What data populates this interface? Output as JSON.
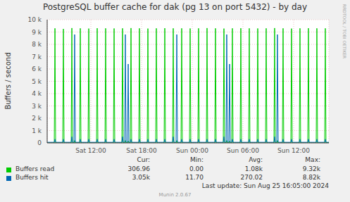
{
  "chart_data": {
    "type": "line",
    "title": "PostgreSQL buffer cache for dak (pg 13 on port 5432) - by day",
    "y_label": "Buffers / second",
    "side_text": "RRDTOOL / TOBI OETIKER",
    "footer": "Last update: Sun Aug 25 16:05:00 2024",
    "credit": "Munin 2.0.67",
    "stat_headers": [
      "Cur:",
      "Min:",
      "Avg:",
      "Max:"
    ],
    "grid": true,
    "xlim": [
      6.83,
      40.17
    ],
    "xticks": [
      {
        "value": 12,
        "label": "Sat 12:00"
      },
      {
        "value": 18,
        "label": "Sat 18:00"
      },
      {
        "value": 24,
        "label": "Sun 00:00"
      },
      {
        "value": 30,
        "label": "Sun 06:00"
      },
      {
        "value": 36,
        "label": "Sun 12:00"
      }
    ],
    "ylim": [
      0,
      10000
    ],
    "yticks": [
      0,
      {
        "value": 1000,
        "label": "1 k"
      },
      {
        "value": 2000,
        "label": "2 k"
      },
      {
        "value": 3000,
        "label": "3 k"
      },
      {
        "value": 4000,
        "label": "4 k"
      },
      {
        "value": 5000,
        "label": "5 k"
      },
      {
        "value": 6000,
        "label": "6 k"
      },
      {
        "value": 7000,
        "label": "7 k"
      },
      {
        "value": 8000,
        "label": "8 k"
      },
      {
        "value": 9000,
        "label": "9 k"
      },
      {
        "value": 10000,
        "label": "10 k"
      }
    ],
    "x": [
      6.83,
      7.67,
      7.75,
      7.83,
      8.67,
      8.75,
      8.83,
      9.67,
      9.75,
      9.83,
      10.0,
      10.08,
      10.17,
      10.67,
      10.75,
      10.83,
      11.67,
      11.75,
      11.83,
      12.67,
      12.75,
      12.83,
      13.67,
      13.75,
      13.83,
      14.67,
      14.75,
      14.83,
      15.67,
      15.75,
      15.83,
      16.0,
      16.08,
      16.17,
      16.33,
      16.42,
      16.5,
      16.67,
      16.75,
      16.83,
      17.67,
      17.75,
      17.83,
      18.67,
      18.75,
      18.83,
      19.67,
      19.75,
      19.83,
      20.67,
      20.75,
      20.83,
      21.67,
      21.75,
      21.83,
      22.08,
      22.17,
      22.25,
      22.67,
      22.75,
      22.83,
      23.67,
      23.75,
      23.83,
      24.67,
      24.75,
      24.83,
      25.67,
      25.75,
      25.83,
      26.67,
      26.75,
      26.83,
      27.67,
      27.75,
      27.83,
      28.0,
      28.08,
      28.17,
      28.33,
      28.42,
      28.5,
      28.67,
      28.75,
      28.83,
      29.67,
      29.75,
      29.83,
      30.67,
      30.75,
      30.83,
      31.67,
      31.75,
      31.83,
      32.67,
      32.75,
      32.83,
      33.67,
      33.75,
      33.83,
      34.0,
      34.08,
      34.17,
      34.67,
      34.75,
      34.83,
      35.67,
      35.75,
      35.83,
      36.67,
      36.75,
      36.83,
      37.67,
      37.75,
      37.83,
      38.67,
      38.75,
      38.83,
      39.67,
      39.75,
      39.83,
      40.17
    ],
    "series": [
      {
        "name": "Buffers read",
        "color": "#00cc00",
        "stats": [
          "306.96",
          "0.00",
          "1.08k",
          "9.32k"
        ],
        "values": [
          0,
          0,
          9300,
          0,
          0,
          9250,
          0,
          0,
          9320,
          0,
          0,
          200,
          0,
          0,
          9300,
          0,
          0,
          9280,
          0,
          0,
          9310,
          0,
          0,
          9300,
          0,
          0,
          9290,
          0,
          0,
          9300,
          0,
          0,
          200,
          0,
          0,
          150,
          0,
          0,
          9320,
          0,
          0,
          9300,
          0,
          0,
          9280,
          0,
          0,
          9300,
          0,
          0,
          9310,
          0,
          0,
          9300,
          0,
          0,
          200,
          0,
          0,
          9300,
          0,
          0,
          9290,
          0,
          0,
          9300,
          0,
          0,
          9320,
          0,
          0,
          9300,
          0,
          0,
          9280,
          0,
          0,
          200,
          0,
          0,
          150,
          0,
          0,
          9300,
          0,
          0,
          9310,
          0,
          0,
          9300,
          0,
          0,
          9290,
          0,
          0,
          9300,
          0,
          0,
          9320,
          0,
          0,
          200,
          0,
          0,
          9300,
          0,
          0,
          9280,
          0,
          0,
          9300,
          0,
          0,
          9310,
          0,
          0,
          9300,
          0,
          0,
          9300,
          0,
          50
        ]
      },
      {
        "name": "Buffers hit",
        "color": "#0066b3",
        "stats": [
          "3.05k",
          "11.70",
          "270.02",
          "8.82k"
        ],
        "values": [
          50,
          50,
          300,
          50,
          50,
          300,
          50,
          50,
          500,
          50,
          50,
          8800,
          50,
          50,
          300,
          50,
          50,
          300,
          50,
          50,
          300,
          50,
          50,
          300,
          50,
          50,
          300,
          50,
          50,
          500,
          50,
          50,
          8800,
          50,
          50,
          6400,
          50,
          50,
          300,
          50,
          50,
          300,
          50,
          50,
          300,
          50,
          50,
          300,
          50,
          50,
          300,
          50,
          50,
          500,
          50,
          50,
          8800,
          50,
          50,
          300,
          50,
          50,
          300,
          50,
          50,
          300,
          50,
          50,
          300,
          50,
          50,
          300,
          50,
          50,
          500,
          50,
          50,
          8800,
          50,
          50,
          6400,
          50,
          50,
          300,
          50,
          50,
          300,
          50,
          50,
          300,
          50,
          50,
          300,
          50,
          50,
          300,
          50,
          50,
          500,
          50,
          50,
          8800,
          50,
          50,
          300,
          50,
          50,
          300,
          50,
          50,
          300,
          50,
          50,
          300,
          50,
          50,
          300,
          50,
          50,
          300,
          50,
          50
        ]
      }
    ]
  }
}
